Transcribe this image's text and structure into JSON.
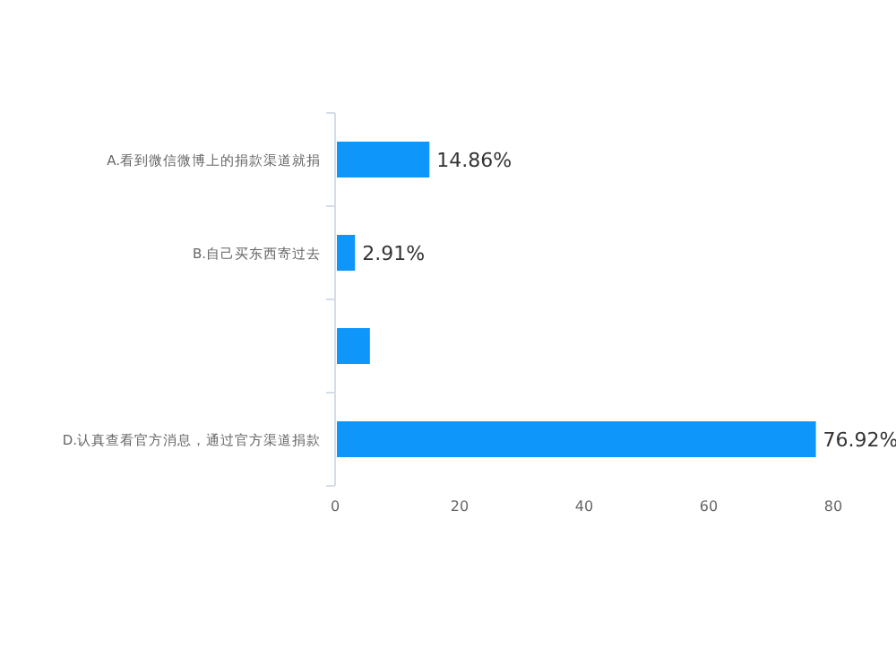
{
  "chart_data": {
    "type": "bar",
    "orientation": "horizontal",
    "categories": [
      "A.看到微信微博上的捐款渠道就捐",
      "B.自己买东西寄过去",
      null,
      "D.认真查看官方消息，通过官方渠道捐款"
    ],
    "values": [
      14.86,
      2.91,
      5.3,
      76.92
    ],
    "value_labels": [
      "14.86%",
      "2.91%",
      null,
      "76.92%"
    ],
    "color": "#0f96fa",
    "xlim": [
      0,
      80
    ],
    "xticks": [
      0,
      20,
      40,
      60,
      80
    ],
    "grid": false
  }
}
